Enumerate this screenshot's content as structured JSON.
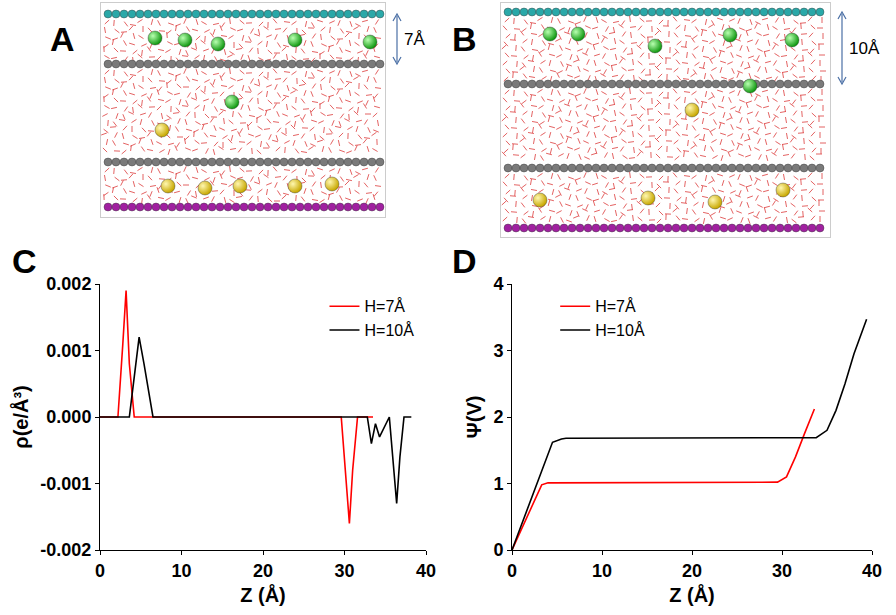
{
  "panels": [
    {
      "letter": "A",
      "spacing": "7Å"
    },
    {
      "letter": "B",
      "spacing": "10Å"
    }
  ],
  "chart_data": [
    {
      "panel": "C",
      "type": "line",
      "x_label": "Z (Å)",
      "y_label": "ρ(e/Å³)",
      "xlim": [
        0,
        40
      ],
      "xticks": [
        0,
        10,
        20,
        30,
        40
      ],
      "ylim": [
        -0.002,
        0.002
      ],
      "yticks": [
        -0.002,
        -0.001,
        {
          "value": 0,
          "label": "0.000"
        },
        0.001,
        0.002
      ],
      "grid": false,
      "legend": "upper right",
      "series": [
        {
          "name": "H=7Å",
          "color": "#ff0000",
          "x": [
            0,
            2.2,
            2.8,
            3.2,
            3.6,
            4.2,
            29.6,
            30.2,
            30.6,
            31.0,
            31.6,
            33.5
          ],
          "values": [
            0,
            0,
            0.0011,
            0.0019,
            0.0008,
            0,
            0,
            -0.0009,
            -0.0016,
            -0.0008,
            0,
            0
          ]
        },
        {
          "name": "H=10Å",
          "color": "#000000",
          "x": [
            0,
            3.6,
            4.3,
            4.8,
            5.4,
            6.5,
            32.8,
            33.3,
            33.8,
            34.3,
            35.5,
            36.0,
            36.4,
            36.8,
            37.3,
            38.2
          ],
          "values": [
            0,
            0,
            0.0007,
            0.0012,
            0.0008,
            0,
            0,
            -0.0004,
            -0.0001,
            -0.0003,
            0,
            -0.0008,
            -0.0013,
            -0.0006,
            0,
            0
          ]
        }
      ]
    },
    {
      "panel": "D",
      "type": "line",
      "x_label": "Z (Å)",
      "y_label": "Ψ(V)",
      "xlim": [
        0,
        40
      ],
      "xticks": [
        0,
        10,
        20,
        30,
        40
      ],
      "ylim": [
        0,
        4
      ],
      "yticks": [
        0,
        1,
        2,
        3,
        4
      ],
      "grid": false,
      "legend": "upper left",
      "series": [
        {
          "name": "H=7Å",
          "color": "#ff0000",
          "x": [
            0,
            3.3,
            4,
            29.5,
            30.5,
            31.5,
            32.5,
            33.6
          ],
          "values": [
            0,
            0.98,
            1.01,
            1.02,
            1.1,
            1.4,
            1.75,
            2.12
          ]
        },
        {
          "name": "H=10Å",
          "color": "#000000",
          "x": [
            0,
            4.5,
            5.5,
            6,
            33.8,
            35,
            36,
            37,
            38,
            39.4
          ],
          "values": [
            0,
            1.62,
            1.67,
            1.68,
            1.69,
            1.8,
            2.1,
            2.5,
            2.95,
            3.47
          ]
        }
      ]
    }
  ]
}
